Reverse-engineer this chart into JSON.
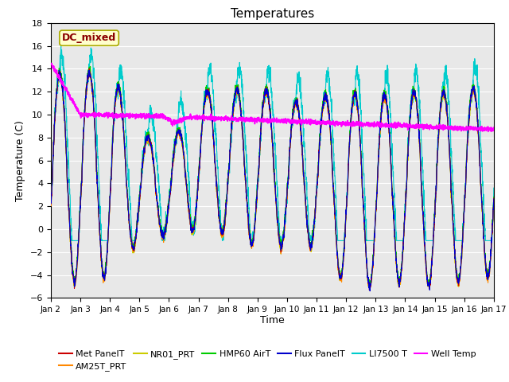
{
  "title": "Temperatures",
  "xlabel": "Time",
  "ylabel": "Temperature (C)",
  "ylim": [
    -6,
    18
  ],
  "yticks": [
    -6,
    -4,
    -2,
    0,
    2,
    4,
    6,
    8,
    10,
    12,
    14,
    16,
    18
  ],
  "x_start": 2,
  "x_end": 17,
  "annotation_text": "DC_mixed",
  "background_color": "#e8e8e8",
  "series_colors": {
    "MetPanelT": "#cc0000",
    "AM25T_PRT": "#ff8800",
    "NR01_PRT": "#cccc00",
    "HMP60_AirT": "#00cc00",
    "FluxPanelT": "#0000cc",
    "LI7500T": "#00cccc",
    "WellTemp": "#ff00ff"
  },
  "legend_labels": [
    "Met PanelT",
    "AM25T_PRT",
    "NR01_PRT",
    "HMP60 AirT",
    "Flux PanelT",
    "LI7500 T",
    "Well Temp"
  ],
  "xtick_labels": [
    "Jan 2",
    "Jan 3",
    "Jan 4",
    "Jan 5",
    "Jan 6",
    "Jan 7",
    "Jan 8",
    "Jan 9",
    "Jan 10",
    "Jan 11",
    "Jan 12",
    "Jan 13",
    "Jan 14",
    "Jan 15",
    "Jan 16",
    "Jan 17"
  ],
  "xtick_positions": [
    2,
    3,
    4,
    5,
    6,
    7,
    8,
    9,
    10,
    11,
    12,
    13,
    14,
    15,
    16,
    17
  ]
}
